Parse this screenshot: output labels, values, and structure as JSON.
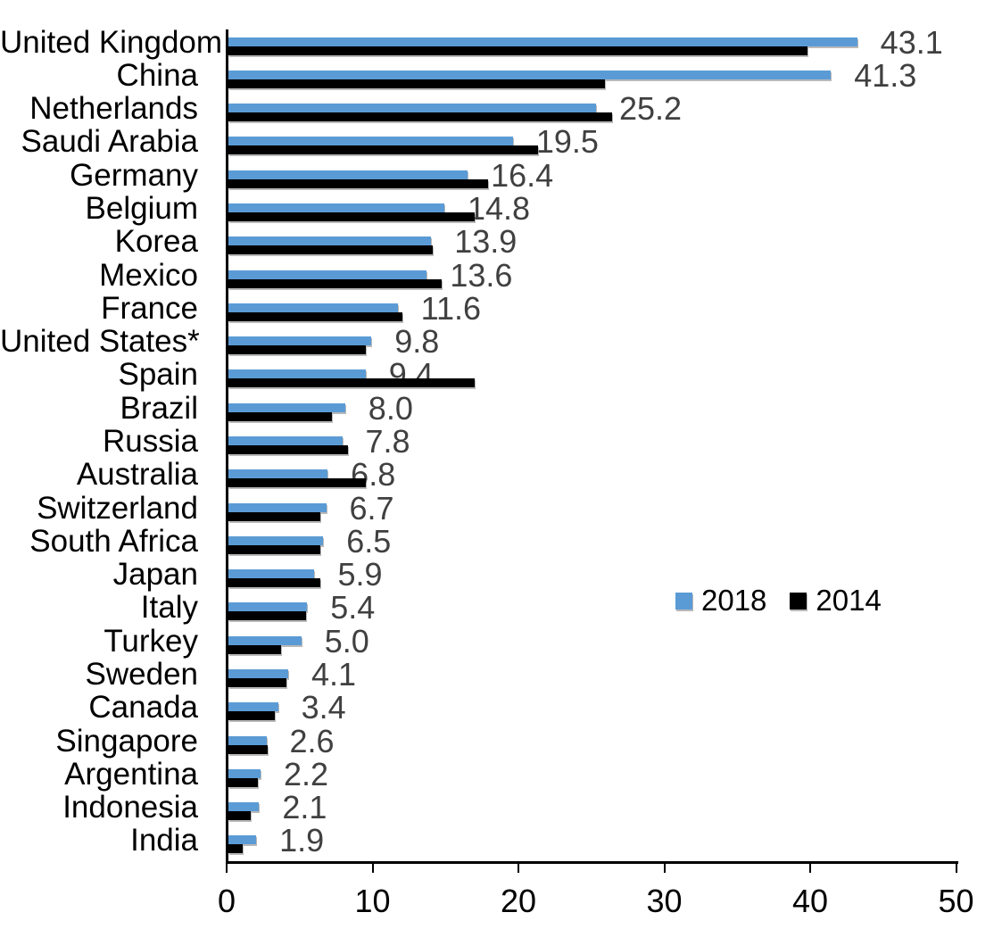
{
  "chart_data": {
    "type": "bar",
    "orientation": "horizontal",
    "title": "",
    "xlabel": "",
    "ylabel": "",
    "xlim": [
      0,
      50
    ],
    "x_ticks": [
      "0",
      "10",
      "20",
      "30",
      "40",
      "50"
    ],
    "grid": "off",
    "legend_position": "middle-right",
    "value_label_color": "#404040",
    "categories": [
      "United Kingdom",
      "China",
      "Netherlands",
      "Saudi Arabia",
      "Germany",
      "Belgium",
      "Korea",
      "Mexico",
      "France",
      "United States*",
      "Spain",
      "Brazil",
      "Russia",
      "Australia",
      "Switzerland",
      "South Africa",
      "Japan",
      "Italy",
      "Turkey",
      "Sweden",
      "Canada",
      "Singapore",
      "Argentina",
      "Indonesia",
      "India"
    ],
    "series": [
      {
        "name": "2018",
        "color": "#5B9BD5",
        "values": [
          43.1,
          41.3,
          25.2,
          19.5,
          16.4,
          14.8,
          13.9,
          13.6,
          11.6,
          9.8,
          9.4,
          8.0,
          7.8,
          6.8,
          6.7,
          6.5,
          5.9,
          5.4,
          5.0,
          4.1,
          3.4,
          2.6,
          2.2,
          2.1,
          1.9
        ],
        "data_labels": [
          "43.1",
          "41.3",
          "25.2",
          "19.5",
          "16.4",
          "14.8",
          "13.9",
          "13.6",
          "11.6",
          "9.8",
          "9.4",
          "8.0",
          "7.8",
          "6.8",
          "6.7",
          "6.5",
          "5.9",
          "5.4",
          "5.0",
          "4.1",
          "3.4",
          "2.6",
          "2.2",
          "2.1",
          "1.9"
        ]
      },
      {
        "name": "2014",
        "color": "#000000",
        "values": [
          39.7,
          25.8,
          26.3,
          21.2,
          17.8,
          16.9,
          14.0,
          14.6,
          11.9,
          9.4,
          16.9,
          7.1,
          8.2,
          9.4,
          6.3,
          6.3,
          6.3,
          5.3,
          3.6,
          4.0,
          3.2,
          2.7,
          2.0,
          1.5,
          1.0
        ]
      }
    ],
    "legend": {
      "entries": [
        {
          "label": "2018",
          "color": "#5B9BD5"
        },
        {
          "label": "2014",
          "color": "#000000"
        }
      ]
    }
  }
}
